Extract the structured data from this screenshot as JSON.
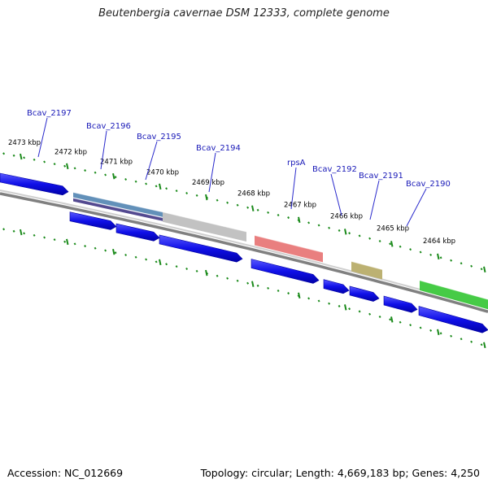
{
  "title": "Beutenbergia cavernae DSM 12333, complete genome",
  "footer": {
    "accession": "Accession: NC_012669",
    "summary": "Topology: circular; Length: 4,669,183 bp; Genes: 4,250"
  },
  "colors": {
    "forward_gene": "#1010e8",
    "backbone": "#808080",
    "tick_marks": "#1a8a1a",
    "label_text": "#1a1ab8",
    "label_leader": "#2a2acc"
  },
  "scale_labels": [
    "2473 kbp",
    "2472 kbp",
    "2471 kbp",
    "2470 kbp",
    "2469 kbp",
    "2468 kbp",
    "2467 kbp",
    "2466 kbp",
    "2465 kbp",
    "2464 kbp"
  ],
  "gene_labels": [
    "Bcav_2197",
    "Bcav_2196",
    "Bcav_2195",
    "Bcav_2194",
    "rpsA",
    "Bcav_2192",
    "Bcav_2191",
    "Bcav_2190"
  ],
  "feature_bands": [
    {
      "label": "Bcav_2196 (COG band)",
      "color": "#5a8ab5"
    },
    {
      "label": "Bcav_2196 (COG band 2)",
      "color": "#4a3f8a"
    },
    {
      "label": "Bcav_2194 (COG band)",
      "color": "#bfbfbf"
    },
    {
      "label": "rpsA (COG band)",
      "color": "#e87878"
    },
    {
      "label": "Bcav_2191 (COG band)",
      "color": "#b8ad6a"
    },
    {
      "label": "Bcav_2190 (COG band)",
      "color": "#3cc83c"
    }
  ]
}
